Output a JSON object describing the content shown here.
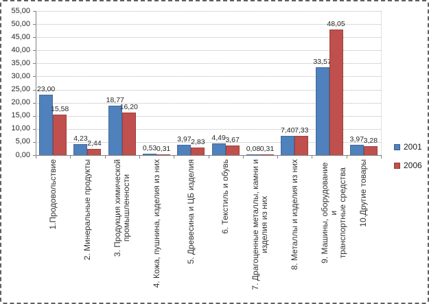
{
  "chart_data": {
    "type": "bar",
    "categories": [
      "1.Продовольствие",
      "2. Минеральные продукты",
      "3. Продукция химической\nпромышленности",
      "4. Кожа, пушнина, изделия из них",
      "5. Древесина и ЦБ изделия",
      "6. Текстиль и обувь",
      "7. Драгоценные металлы, камни и\nизделия из них",
      "8. Металлы и изделия из них",
      "9. Машины, оборудование и\nтранспортные средства",
      "10.Другие товары"
    ],
    "series": [
      {
        "name": "2001",
        "color": "#4f81bd",
        "values": [
          23.0,
          4.23,
          18.77,
          0.53,
          3.97,
          4.49,
          0.08,
          7.4,
          33.57,
          3.97
        ]
      },
      {
        "name": "2006",
        "color": "#c0504d",
        "values": [
          15.58,
          2.44,
          16.2,
          0.31,
          2.83,
          3.67,
          0.31,
          7.33,
          48.05,
          3.28
        ]
      }
    ],
    "y_ticks": [
      "55,00",
      "50,00",
      "45,00",
      "40,00",
      "35,00",
      "30,00",
      "25,00",
      "20,00",
      "15,00",
      "10,00",
      "5,00",
      "0,00"
    ],
    "ylim": [
      0,
      55
    ],
    "y_step": 5,
    "grid": true,
    "legend_position": "right",
    "decimal_separator": ",",
    "data_labels_shown": true
  }
}
